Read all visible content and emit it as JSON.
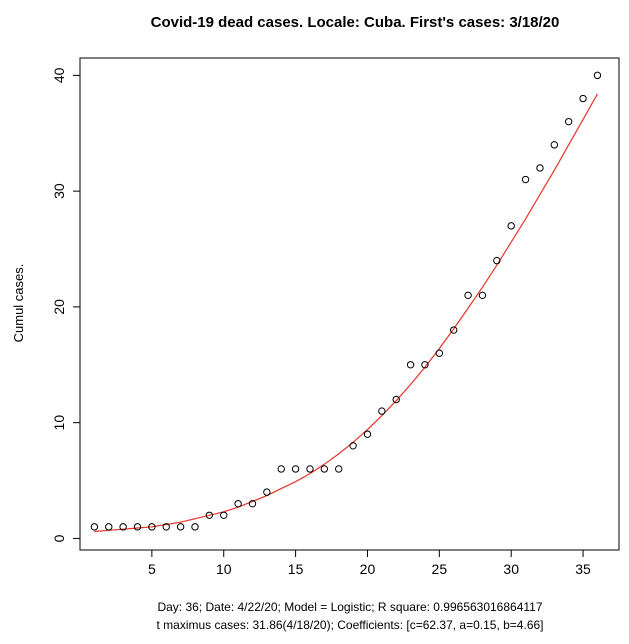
{
  "chart_data": {
    "type": "scatter",
    "title": "Covid-19 dead cases. Locale: Cuba. First's cases: 3/18/20",
    "xlabel": "",
    "ylabel": "Cumul cases.",
    "xlim": [
      0,
      37.5
    ],
    "ylim": [
      -1,
      41.5
    ],
    "x_ticks": [
      5,
      10,
      15,
      20,
      25,
      30,
      35
    ],
    "y_ticks": [
      0,
      10,
      20,
      30,
      40
    ],
    "grid": false,
    "point_color": "#000000",
    "fit_color": "#e8332a",
    "series": [
      {
        "x": [
          1,
          2,
          3,
          4,
          5,
          6,
          7,
          8,
          9,
          10,
          11,
          12,
          13,
          14,
          15,
          16,
          17,
          18,
          19,
          20,
          21,
          22,
          23,
          24,
          25,
          26,
          27,
          28,
          29,
          30,
          31,
          32,
          33,
          34,
          35,
          36
        ],
        "y": [
          1,
          1,
          1,
          1,
          1,
          1,
          1,
          1,
          2,
          2,
          3,
          3,
          4,
          6,
          6,
          6,
          6,
          6,
          8,
          9,
          11,
          12,
          15,
          15,
          16,
          18,
          21,
          21,
          24,
          27,
          31,
          32,
          34,
          36,
          38,
          40
        ]
      }
    ],
    "fit_line": {
      "x": [
        1,
        2,
        3,
        4,
        5,
        6,
        7,
        8,
        9,
        10,
        11,
        12,
        13,
        14,
        15,
        16,
        17,
        18,
        19,
        20,
        21,
        22,
        23,
        24,
        25,
        26,
        27,
        28,
        29,
        30,
        31,
        32,
        33,
        34,
        35,
        36
      ],
      "y": [
        0.6,
        0.7,
        0.8,
        0.9,
        1.0,
        1.2,
        1.4,
        1.7,
        2.0,
        2.3,
        2.7,
        3.2,
        3.7,
        4.3,
        4.9,
        5.6,
        6.4,
        7.3,
        8.3,
        9.4,
        10.6,
        11.9,
        13.3,
        14.8,
        16.4,
        18.1,
        19.9,
        21.7,
        23.6,
        25.6,
        27.6,
        29.7,
        31.8,
        34.0,
        36.2,
        38.4
      ]
    },
    "footer_lines": [
      "Day: 36; Date: 4/22/20; Model = Logistic; R square: 0.996563016864117",
      "t maximus cases: 31.86(4/18/20); Coefficients: [c=62.37, a=0.15, b=4.66]"
    ]
  }
}
